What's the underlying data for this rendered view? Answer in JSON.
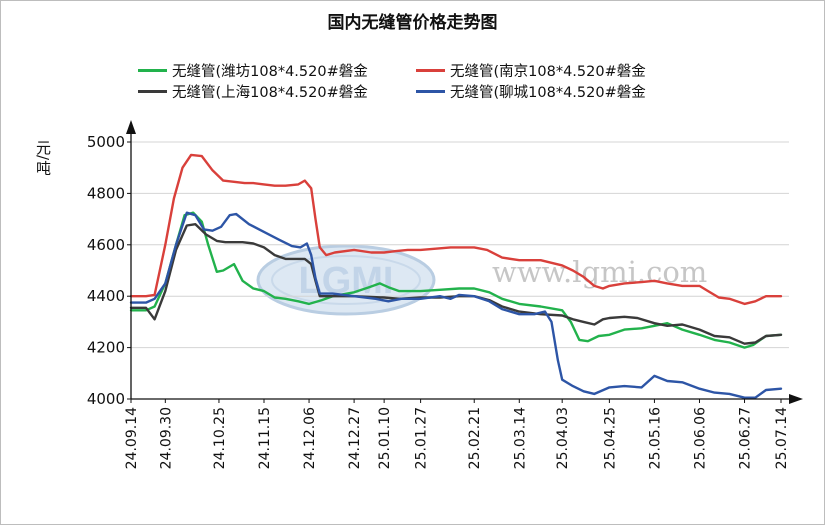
{
  "chart_data": {
    "type": "line",
    "title": "国内无缝管价格走势图",
    "ylabel": "元/吨",
    "ylim": [
      4000,
      5000
    ],
    "yticks": [
      4000,
      4200,
      4400,
      4600,
      4800,
      5000
    ],
    "xlim": [
      "2024-09-14",
      "2025-07-14"
    ],
    "x_ticks": [
      {
        "label": "24.09.14",
        "date": "2024-09-14"
      },
      {
        "label": "24.09.30",
        "date": "2024-09-30"
      },
      {
        "label": "24.10.25",
        "date": "2024-10-25"
      },
      {
        "label": "24.11.15",
        "date": "2024-11-15"
      },
      {
        "label": "24.12.06",
        "date": "2024-12-06"
      },
      {
        "label": "24.12.27",
        "date": "2024-12-27"
      },
      {
        "label": "25.01.10",
        "date": "2025-01-10"
      },
      {
        "label": "25.01.27",
        "date": "2025-01-27"
      },
      {
        "label": "25.02.21",
        "date": "2025-02-21"
      },
      {
        "label": "25.03.14",
        "date": "2025-03-14"
      },
      {
        "label": "25.04.03",
        "date": "2025-04-03"
      },
      {
        "label": "25.04.25",
        "date": "2025-04-25"
      },
      {
        "label": "25.05.16",
        "date": "2025-05-16"
      },
      {
        "label": "25.06.06",
        "date": "2025-06-06"
      },
      {
        "label": "25.06.27",
        "date": "2025-06-27"
      },
      {
        "label": "25.07.14",
        "date": "2025-07-14"
      }
    ],
    "grid": true,
    "legend_position": "top",
    "series": [
      {
        "name": "无缝管(潍坊108*4.520#磐金",
        "color": "#22b24c",
        "points": [
          [
            "2024-09-14",
            4345
          ],
          [
            "2024-09-21",
            4345
          ],
          [
            "2024-09-25",
            4360
          ],
          [
            "2024-09-30",
            4450
          ],
          [
            "2024-10-05",
            4600
          ],
          [
            "2024-10-09",
            4715
          ],
          [
            "2024-10-13",
            4725
          ],
          [
            "2024-10-17",
            4690
          ],
          [
            "2024-10-20",
            4600
          ],
          [
            "2024-10-24",
            4495
          ],
          [
            "2024-10-27",
            4500
          ],
          [
            "2024-11-01",
            4525
          ],
          [
            "2024-11-05",
            4460
          ],
          [
            "2024-11-10",
            4430
          ],
          [
            "2024-11-15",
            4420
          ],
          [
            "2024-11-20",
            4395
          ],
          [
            "2024-11-25",
            4390
          ],
          [
            "2024-12-01",
            4380
          ],
          [
            "2024-12-06",
            4370
          ],
          [
            "2024-12-12",
            4385
          ],
          [
            "2024-12-17",
            4400
          ],
          [
            "2024-12-27",
            4415
          ],
          [
            "2025-01-03",
            4435
          ],
          [
            "2025-01-08",
            4450
          ],
          [
            "2025-01-12",
            4435
          ],
          [
            "2025-01-17",
            4420
          ],
          [
            "2025-01-27",
            4420
          ],
          [
            "2025-02-05",
            4425
          ],
          [
            "2025-02-14",
            4430
          ],
          [
            "2025-02-21",
            4430
          ],
          [
            "2025-02-28",
            4415
          ],
          [
            "2025-03-06",
            4390
          ],
          [
            "2025-03-14",
            4370
          ],
          [
            "2025-03-24",
            4360
          ],
          [
            "2025-04-03",
            4345
          ],
          [
            "2025-04-07",
            4300
          ],
          [
            "2025-04-11",
            4230
          ],
          [
            "2025-04-15",
            4225
          ],
          [
            "2025-04-20",
            4245
          ],
          [
            "2025-04-25",
            4250
          ],
          [
            "2025-05-02",
            4270
          ],
          [
            "2025-05-10",
            4275
          ],
          [
            "2025-05-16",
            4285
          ],
          [
            "2025-05-22",
            4295
          ],
          [
            "2025-05-29",
            4270
          ],
          [
            "2025-06-06",
            4250
          ],
          [
            "2025-06-13",
            4230
          ],
          [
            "2025-06-20",
            4220
          ],
          [
            "2025-06-27",
            4200
          ],
          [
            "2025-07-01",
            4210
          ],
          [
            "2025-07-07",
            4245
          ],
          [
            "2025-07-14",
            4250
          ]
        ]
      },
      {
        "name": "无缝管(南京108*4.520#磐金",
        "color": "#d9403b",
        "points": [
          [
            "2024-09-14",
            4400
          ],
          [
            "2024-09-21",
            4400
          ],
          [
            "2024-09-25",
            4405
          ],
          [
            "2024-09-30",
            4600
          ],
          [
            "2024-10-04",
            4780
          ],
          [
            "2024-10-08",
            4900
          ],
          [
            "2024-10-12",
            4950
          ],
          [
            "2024-10-17",
            4945
          ],
          [
            "2024-10-22",
            4890
          ],
          [
            "2024-10-27",
            4850
          ],
          [
            "2024-11-01",
            4845
          ],
          [
            "2024-11-06",
            4840
          ],
          [
            "2024-11-10",
            4840
          ],
          [
            "2024-11-15",
            4835
          ],
          [
            "2024-11-20",
            4830
          ],
          [
            "2024-11-25",
            4830
          ],
          [
            "2024-12-01",
            4835
          ],
          [
            "2024-12-04",
            4850
          ],
          [
            "2024-12-07",
            4820
          ],
          [
            "2024-12-09",
            4700
          ],
          [
            "2024-12-11",
            4590
          ],
          [
            "2024-12-14",
            4560
          ],
          [
            "2024-12-18",
            4570
          ],
          [
            "2024-12-27",
            4580
          ],
          [
            "2025-01-04",
            4570
          ],
          [
            "2025-01-10",
            4570
          ],
          [
            "2025-01-15",
            4575
          ],
          [
            "2025-01-21",
            4580
          ],
          [
            "2025-01-27",
            4580
          ],
          [
            "2025-02-03",
            4585
          ],
          [
            "2025-02-10",
            4590
          ],
          [
            "2025-02-21",
            4590
          ],
          [
            "2025-02-27",
            4580
          ],
          [
            "2025-03-06",
            4550
          ],
          [
            "2025-03-14",
            4540
          ],
          [
            "2025-03-24",
            4540
          ],
          [
            "2025-04-03",
            4520
          ],
          [
            "2025-04-08",
            4500
          ],
          [
            "2025-04-13",
            4475
          ],
          [
            "2025-04-18",
            4440
          ],
          [
            "2025-04-22",
            4430
          ],
          [
            "2025-04-25",
            4440
          ],
          [
            "2025-05-02",
            4450
          ],
          [
            "2025-05-10",
            4455
          ],
          [
            "2025-05-16",
            4460
          ],
          [
            "2025-05-22",
            4450
          ],
          [
            "2025-05-29",
            4440
          ],
          [
            "2025-06-06",
            4440
          ],
          [
            "2025-06-10",
            4420
          ],
          [
            "2025-06-15",
            4395
          ],
          [
            "2025-06-20",
            4390
          ],
          [
            "2025-06-27",
            4370
          ],
          [
            "2025-07-02",
            4380
          ],
          [
            "2025-07-07",
            4400
          ],
          [
            "2025-07-14",
            4400
          ]
        ]
      },
      {
        "name": "无缝管(上海108*4.520#磐金",
        "color": "#3a3a3a",
        "points": [
          [
            "2024-09-14",
            4355
          ],
          [
            "2024-09-21",
            4355
          ],
          [
            "2024-09-25",
            4310
          ],
          [
            "2024-09-30",
            4420
          ],
          [
            "2024-10-05",
            4580
          ],
          [
            "2024-10-10",
            4675
          ],
          [
            "2024-10-14",
            4680
          ],
          [
            "2024-10-19",
            4640
          ],
          [
            "2024-10-24",
            4615
          ],
          [
            "2024-10-28",
            4610
          ],
          [
            "2024-11-05",
            4610
          ],
          [
            "2024-11-10",
            4605
          ],
          [
            "2024-11-15",
            4590
          ],
          [
            "2024-11-20",
            4560
          ],
          [
            "2024-11-25",
            4545
          ],
          [
            "2024-12-01",
            4545
          ],
          [
            "2024-12-04",
            4545
          ],
          [
            "2024-12-07",
            4525
          ],
          [
            "2024-12-09",
            4460
          ],
          [
            "2024-12-11",
            4400
          ],
          [
            "2024-12-17",
            4400
          ],
          [
            "2024-12-27",
            4400
          ],
          [
            "2025-01-10",
            4395
          ],
          [
            "2025-01-17",
            4390
          ],
          [
            "2025-01-27",
            4395
          ],
          [
            "2025-02-05",
            4395
          ],
          [
            "2025-02-14",
            4400
          ],
          [
            "2025-02-21",
            4400
          ],
          [
            "2025-02-28",
            4385
          ],
          [
            "2025-03-06",
            4360
          ],
          [
            "2025-03-14",
            4340
          ],
          [
            "2025-03-24",
            4330
          ],
          [
            "2025-04-03",
            4325
          ],
          [
            "2025-04-08",
            4310
          ],
          [
            "2025-04-13",
            4300
          ],
          [
            "2025-04-18",
            4290
          ],
          [
            "2025-04-22",
            4310
          ],
          [
            "2025-04-25",
            4315
          ],
          [
            "2025-05-02",
            4320
          ],
          [
            "2025-05-08",
            4315
          ],
          [
            "2025-05-16",
            4295
          ],
          [
            "2025-05-22",
            4285
          ],
          [
            "2025-05-29",
            4290
          ],
          [
            "2025-06-06",
            4270
          ],
          [
            "2025-06-13",
            4245
          ],
          [
            "2025-06-20",
            4240
          ],
          [
            "2025-06-27",
            4215
          ],
          [
            "2025-07-02",
            4220
          ],
          [
            "2025-07-07",
            4245
          ],
          [
            "2025-07-14",
            4250
          ]
        ]
      },
      {
        "name": "无缝管(聊城108*4.520#磐金",
        "color": "#2d55a6",
        "points": [
          [
            "2024-09-14",
            4375
          ],
          [
            "2024-09-21",
            4375
          ],
          [
            "2024-09-25",
            4390
          ],
          [
            "2024-09-30",
            4450
          ],
          [
            "2024-10-05",
            4600
          ],
          [
            "2024-10-10",
            4725
          ],
          [
            "2024-10-14",
            4715
          ],
          [
            "2024-10-18",
            4660
          ],
          [
            "2024-10-22",
            4655
          ],
          [
            "2024-10-26",
            4670
          ],
          [
            "2024-10-30",
            4715
          ],
          [
            "2024-11-02",
            4720
          ],
          [
            "2024-11-08",
            4680
          ],
          [
            "2024-11-15",
            4650
          ],
          [
            "2024-11-22",
            4620
          ],
          [
            "2024-11-28",
            4595
          ],
          [
            "2024-12-02",
            4590
          ],
          [
            "2024-12-05",
            4605
          ],
          [
            "2024-12-07",
            4560
          ],
          [
            "2024-12-09",
            4470
          ],
          [
            "2024-12-11",
            4410
          ],
          [
            "2024-12-17",
            4410
          ],
          [
            "2024-12-27",
            4400
          ],
          [
            "2025-01-06",
            4390
          ],
          [
            "2025-01-12",
            4380
          ],
          [
            "2025-01-18",
            4390
          ],
          [
            "2025-01-27",
            4390
          ],
          [
            "2025-02-05",
            4400
          ],
          [
            "2025-02-10",
            4390
          ],
          [
            "2025-02-14",
            4405
          ],
          [
            "2025-02-21",
            4400
          ],
          [
            "2025-02-28",
            4380
          ],
          [
            "2025-03-06",
            4350
          ],
          [
            "2025-03-14",
            4330
          ],
          [
            "2025-03-21",
            4330
          ],
          [
            "2025-03-26",
            4340
          ],
          [
            "2025-03-29",
            4300
          ],
          [
            "2025-04-01",
            4150
          ],
          [
            "2025-04-03",
            4075
          ],
          [
            "2025-04-08",
            4050
          ],
          [
            "2025-04-13",
            4030
          ],
          [
            "2025-04-18",
            4020
          ],
          [
            "2025-04-25",
            4045
          ],
          [
            "2025-05-02",
            4050
          ],
          [
            "2025-05-10",
            4045
          ],
          [
            "2025-05-16",
            4090
          ],
          [
            "2025-05-22",
            4070
          ],
          [
            "2025-05-29",
            4065
          ],
          [
            "2025-06-06",
            4040
          ],
          [
            "2025-06-13",
            4025
          ],
          [
            "2025-06-20",
            4020
          ],
          [
            "2025-06-27",
            4005
          ],
          [
            "2025-07-02",
            4005
          ],
          [
            "2025-07-07",
            4035
          ],
          [
            "2025-07-14",
            4040
          ]
        ]
      }
    ]
  },
  "watermark": {
    "logo_text": "LGMI",
    "url_text": "www.lgmi.com"
  }
}
